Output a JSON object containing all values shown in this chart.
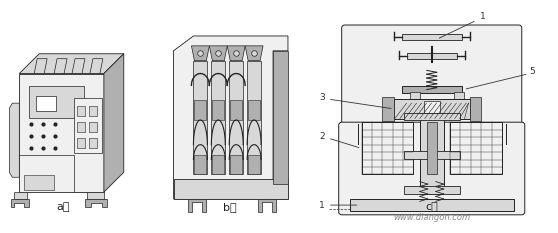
{
  "bg_color": "#ffffff",
  "fig_width": 5.58,
  "fig_height": 2.33,
  "dpi": 100,
  "label_a": "a）",
  "label_b": "b）",
  "label_c": "c）",
  "watermark": "www.diangon.com",
  "line_color": "#333333",
  "dark_color": "#222222",
  "fill_light": "#f0f0f0",
  "fill_mid": "#d8d8d8",
  "fill_dark": "#b0b0b0",
  "fill_white": "#ffffff",
  "annotation_color": "#333333"
}
